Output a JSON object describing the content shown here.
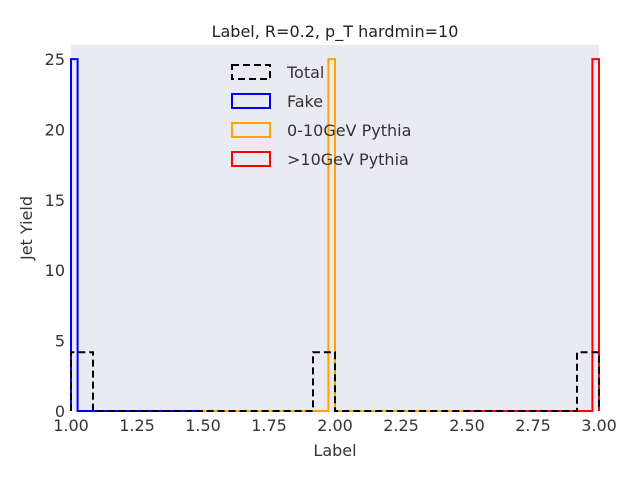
{
  "chart_data": {
    "type": "step-histogram",
    "title": "Label, R=0.2, p_T hardmin=10",
    "xlabel": "Label",
    "ylabel": "Jet Yield",
    "xlim": [
      1.0,
      3.0
    ],
    "ylim": [
      0,
      26
    ],
    "xticks": [
      "1.00",
      "1.25",
      "1.50",
      "1.75",
      "2.00",
      "2.25",
      "2.50",
      "2.75",
      "3.00"
    ],
    "yticks": [
      "0",
      "5",
      "10",
      "15",
      "20",
      "25"
    ],
    "grid": false,
    "background": "#eaeaf2",
    "legend_position": "upper-center",
    "series": [
      {
        "name": "Total",
        "color": "#000000",
        "style": "dashed",
        "x_range": [
          1.0,
          3.0
        ],
        "bins": 24,
        "values": [
          4.17,
          0,
          0,
          0,
          0,
          0,
          0,
          0,
          0,
          0,
          0,
          4.17,
          0,
          0,
          0,
          0,
          0,
          0,
          0,
          0,
          0,
          0,
          0,
          4.17
        ]
      },
      {
        "name": "Fake",
        "color": "#0000ff",
        "style": "solid",
        "x_range": [
          1.0,
          1.5
        ],
        "bins": 20,
        "values": [
          25,
          0,
          0,
          0,
          0,
          0,
          0,
          0,
          0,
          0,
          0,
          0,
          0,
          0,
          0,
          0,
          0,
          0,
          0,
          0
        ]
      },
      {
        "name": "0-10GeV Pythia",
        "color": "#ffa500",
        "style": "solid",
        "x_range": [
          1.5,
          2.5
        ],
        "bins": 40,
        "values": [
          0,
          0,
          0,
          0,
          0,
          0,
          0,
          0,
          0,
          0,
          0,
          0,
          0,
          0,
          0,
          0,
          0,
          0,
          0,
          25,
          0,
          0,
          0,
          0,
          0,
          0,
          0,
          0,
          0,
          0,
          0,
          0,
          0,
          0,
          0,
          0,
          0,
          0,
          0,
          0
        ]
      },
      {
        "name": ">10GeV Pythia",
        "color": "#ff0000",
        "style": "solid",
        "x_range": [
          2.5,
          3.0
        ],
        "bins": 20,
        "values": [
          0,
          0,
          0,
          0,
          0,
          0,
          0,
          0,
          0,
          0,
          0,
          0,
          0,
          0,
          0,
          0,
          0,
          0,
          0,
          25
        ]
      }
    ]
  }
}
